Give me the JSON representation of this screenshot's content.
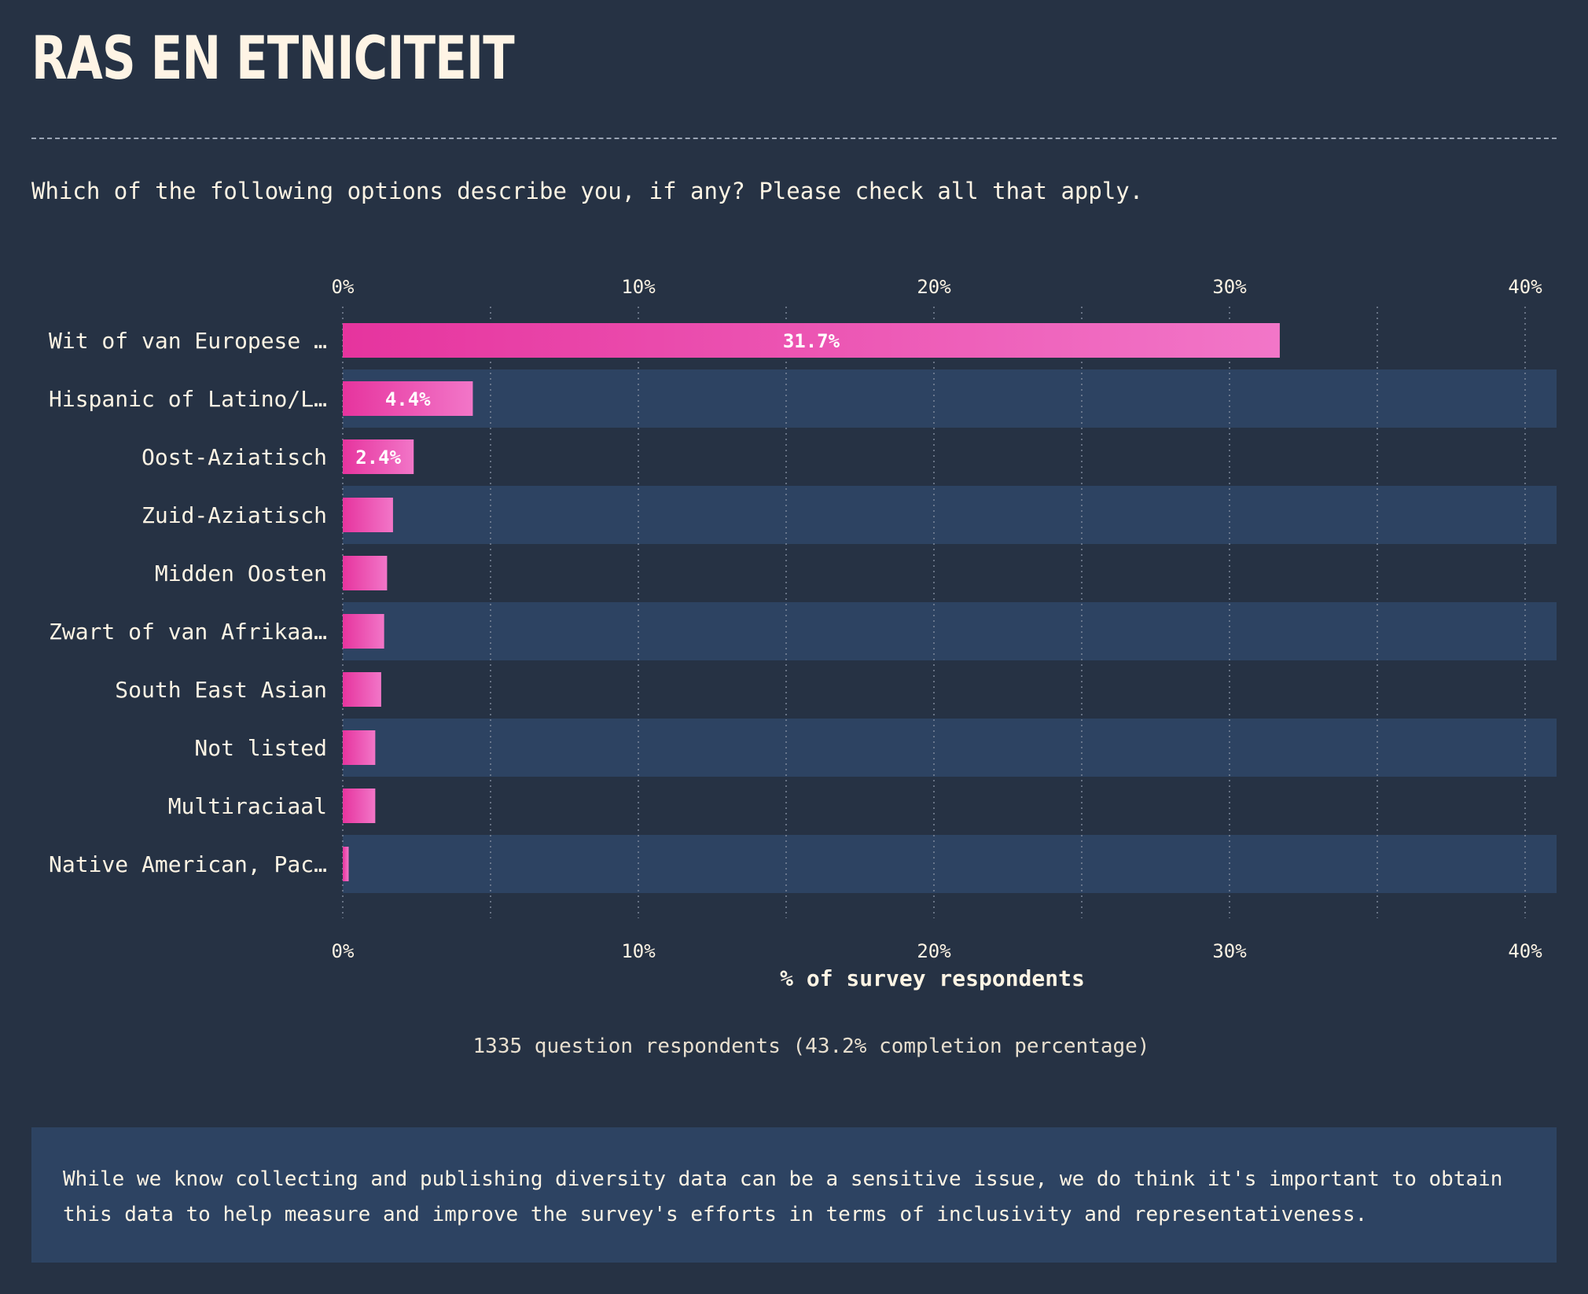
{
  "header": {
    "title": "RAS EN ETNICITEIT",
    "question": "Which of the following options describe you, if any? Please check all that apply."
  },
  "chart_data": {
    "type": "bar",
    "orientation": "horizontal",
    "categories": [
      "Wit of van Europese …",
      "Hispanic of Latino/L…",
      "Oost-Aziatisch",
      "Zuid-Aziatisch",
      "Midden Oosten",
      "Zwart of van Afrikaa…",
      "South East Asian",
      "Not listed",
      "Multiraciaal",
      "Native American, Pac…"
    ],
    "values": [
      31.7,
      4.4,
      2.4,
      1.7,
      1.5,
      1.4,
      1.3,
      1.1,
      1.1,
      0.2
    ],
    "value_labels": [
      "31.7%",
      "4.4%",
      "2.4%",
      "",
      "",
      "",
      "",
      "",
      "",
      ""
    ],
    "xlabel": "% of survey respondents",
    "xlim": [
      0,
      41
    ],
    "ticks": [
      0,
      10,
      20,
      30,
      40
    ],
    "tick_labels": [
      "0%",
      "10%",
      "20%",
      "30%",
      "40%"
    ],
    "minor_grid": [
      5,
      15,
      25,
      35
    ],
    "grid": true,
    "bar_gradient": [
      "#e6349e",
      "#f276c8"
    ]
  },
  "footnote": "1335 question respondents (43.2% completion percentage)",
  "note": "While we know collecting and publishing diversity data can be a sensitive issue, we do think it's important to obtain this data to help measure and improve the survey's efforts in terms of inclusivity and representativeness.",
  "colors": {
    "background": "#263244",
    "band": "#2d4362",
    "text": "#fdf4e4"
  }
}
